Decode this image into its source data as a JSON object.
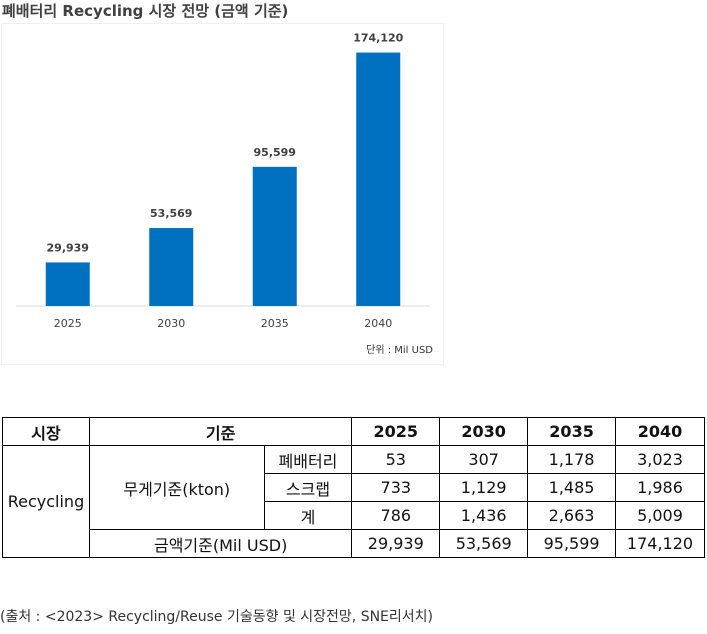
{
  "title": "폐배터리 Recycling 시장 전망 (금액 기준)",
  "chart_data": {
    "type": "bar",
    "title": "폐배터리 Recycling 시장 전망 (금액 기준)",
    "categories": [
      "2025",
      "2030",
      "2035",
      "2040"
    ],
    "values": [
      29939,
      53569,
      95599,
      174120
    ],
    "value_labels": [
      "29,939",
      "53,569",
      "95,599",
      "174,120"
    ],
    "unit_note": "단위 : Mil USD",
    "bar_color": "#0070C0",
    "ylim": [
      0,
      180000
    ],
    "grid": false
  },
  "table": {
    "headers": {
      "market": "시장",
      "basis": "기준",
      "years": [
        "2025",
        "2030",
        "2035",
        "2040"
      ]
    },
    "market_name": "Recycling",
    "weight_basis": "무게기준(kton)",
    "rows": [
      {
        "label": "폐배터리",
        "values": [
          "53",
          "307",
          "1,178",
          "3,023"
        ]
      },
      {
        "label": "스크랩",
        "values": [
          "733",
          "1,129",
          "1,485",
          "1,986"
        ]
      },
      {
        "label": "계",
        "values": [
          "786",
          "1,436",
          "2,663",
          "5,009"
        ]
      }
    ],
    "amount_row": {
      "label": "금액기준(Mil USD)",
      "values": [
        "29,939",
        "53,569",
        "95,599",
        "174,120"
      ]
    }
  },
  "source": "(출처 : <2023> Recycling/Reuse 기술동향 및 시장전망, SNE리서치)"
}
